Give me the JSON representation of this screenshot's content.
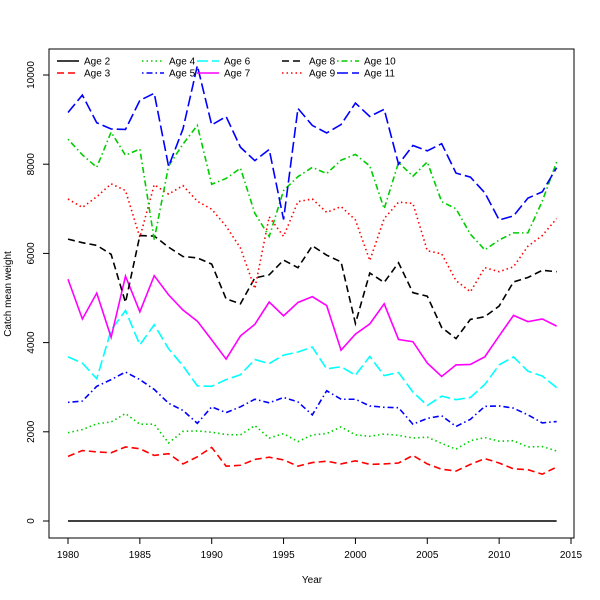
{
  "chart_data": {
    "type": "line",
    "title": "",
    "xlabel": "Year",
    "ylabel": "Catch mean weight",
    "xlim": [
      1980,
      2015
    ],
    "ylim": [
      0,
      10000
    ],
    "x_ticks": [
      1980,
      1985,
      1990,
      1995,
      2000,
      2005,
      2010,
      2015
    ],
    "y_ticks": [
      0,
      2000,
      4000,
      6000,
      8000,
      10000
    ],
    "grid": false,
    "legend_position": "top-left",
    "x": [
      1980,
      1981,
      1982,
      1983,
      1984,
      1985,
      1986,
      1987,
      1988,
      1989,
      1990,
      1991,
      1992,
      1993,
      1994,
      1995,
      1996,
      1997,
      1998,
      1999,
      2000,
      2001,
      2002,
      2003,
      2004,
      2005,
      2006,
      2007,
      2008,
      2009,
      2010,
      2011,
      2012,
      2013,
      2014
    ],
    "series": [
      {
        "name": "Age 2",
        "color": "#000000",
        "dash": "solid",
        "values": [
          0,
          0,
          0,
          0,
          0,
          0,
          0,
          0,
          0,
          0,
          0,
          0,
          0,
          0,
          0,
          0,
          0,
          0,
          0,
          0,
          0,
          0,
          0,
          0,
          0,
          0,
          0,
          0,
          0,
          0,
          0,
          0,
          0,
          0,
          0
        ]
      },
      {
        "name": "Age 3",
        "color": "#ff0000",
        "dash": "dashed",
        "values": [
          1450,
          1580,
          1550,
          1530,
          1660,
          1620,
          1470,
          1510,
          1280,
          1440,
          1650,
          1230,
          1250,
          1380,
          1430,
          1370,
          1230,
          1310,
          1340,
          1280,
          1350,
          1270,
          1280,
          1300,
          1470,
          1280,
          1160,
          1120,
          1270,
          1400,
          1300,
          1170,
          1150,
          1050,
          1210
        ]
      },
      {
        "name": "Age 4",
        "color": "#00cd00",
        "dash": "dotted",
        "values": [
          1980,
          2050,
          2180,
          2220,
          2410,
          2170,
          2170,
          1750,
          2010,
          2020,
          1990,
          1940,
          1930,
          2140,
          1860,
          1960,
          1780,
          1930,
          1960,
          2110,
          1930,
          1900,
          1950,
          1920,
          1860,
          1880,
          1740,
          1610,
          1800,
          1870,
          1790,
          1800,
          1660,
          1670,
          1570
        ]
      },
      {
        "name": "Age 5",
        "color": "#0000ff",
        "dash": "dotdash",
        "values": [
          2660,
          2690,
          3020,
          3170,
          3340,
          3170,
          2950,
          2640,
          2480,
          2190,
          2560,
          2430,
          2560,
          2730,
          2650,
          2770,
          2670,
          2380,
          2920,
          2730,
          2730,
          2580,
          2550,
          2540,
          2170,
          2300,
          2360,
          2120,
          2280,
          2570,
          2580,
          2530,
          2380,
          2200,
          2230
        ]
      },
      {
        "name": "Age 6",
        "color": "#00ffff",
        "dash": "longdash",
        "values": [
          3680,
          3540,
          3190,
          4280,
          4720,
          3950,
          4400,
          3860,
          3480,
          3030,
          3020,
          3170,
          3280,
          3620,
          3530,
          3720,
          3790,
          3900,
          3410,
          3460,
          3270,
          3690,
          3260,
          3330,
          2890,
          2590,
          2800,
          2720,
          2770,
          3060,
          3500,
          3680,
          3360,
          3250,
          2990
        ]
      },
      {
        "name": "Age 7",
        "color": "#ff00ff",
        "dash": "solid",
        "values": [
          5420,
          4530,
          5110,
          4120,
          5490,
          4690,
          5500,
          5070,
          4730,
          4480,
          4060,
          3630,
          4150,
          4410,
          4910,
          4600,
          4900,
          5030,
          4830,
          3830,
          4190,
          4420,
          4870,
          4070,
          4020,
          3540,
          3240,
          3500,
          3510,
          3680,
          4150,
          4610,
          4470,
          4530,
          4370
        ]
      },
      {
        "name": "Age 8",
        "color": "#000000",
        "dash": "dashed",
        "values": [
          6320,
          6240,
          6180,
          5980,
          4900,
          6400,
          6390,
          6140,
          5930,
          5900,
          5760,
          4980,
          4870,
          5450,
          5520,
          5850,
          5680,
          6170,
          5960,
          5810,
          4430,
          5560,
          5350,
          5790,
          5120,
          5040,
          4340,
          4090,
          4520,
          4580,
          4820,
          5360,
          5460,
          5620,
          5590
        ]
      },
      {
        "name": "Age 9",
        "color": "#ff0000",
        "dash": "dotted",
        "values": [
          7220,
          7030,
          7270,
          7560,
          7410,
          6360,
          7540,
          7330,
          7520,
          7170,
          6990,
          6610,
          6120,
          5210,
          6820,
          6380,
          7160,
          7220,
          6920,
          7050,
          6750,
          5840,
          6780,
          7150,
          7120,
          6060,
          5990,
          5390,
          5140,
          5680,
          5590,
          5700,
          6160,
          6400,
          6780
        ]
      },
      {
        "name": "Age 10",
        "color": "#00cd00",
        "dash": "dotdash",
        "values": [
          8560,
          8210,
          7930,
          8720,
          8200,
          8340,
          6310,
          7960,
          8450,
          8870,
          7550,
          7680,
          7910,
          6900,
          6380,
          7410,
          7720,
          7930,
          7790,
          8090,
          8220,
          7960,
          7000,
          8040,
          7730,
          8050,
          7160,
          7000,
          6430,
          6080,
          6300,
          6460,
          6460,
          7170,
          8050
        ]
      },
      {
        "name": "Age 11",
        "color": "#0000ff",
        "dash": "longdash",
        "values": [
          9160,
          9550,
          8930,
          8790,
          8780,
          9430,
          9590,
          7950,
          8790,
          10210,
          8880,
          9070,
          8380,
          8080,
          8330,
          6760,
          9250,
          8870,
          8700,
          8890,
          9370,
          9070,
          9230,
          8000,
          8420,
          8300,
          8460,
          7800,
          7710,
          7360,
          6750,
          6840,
          7240,
          7380,
          7920
        ]
      }
    ]
  }
}
